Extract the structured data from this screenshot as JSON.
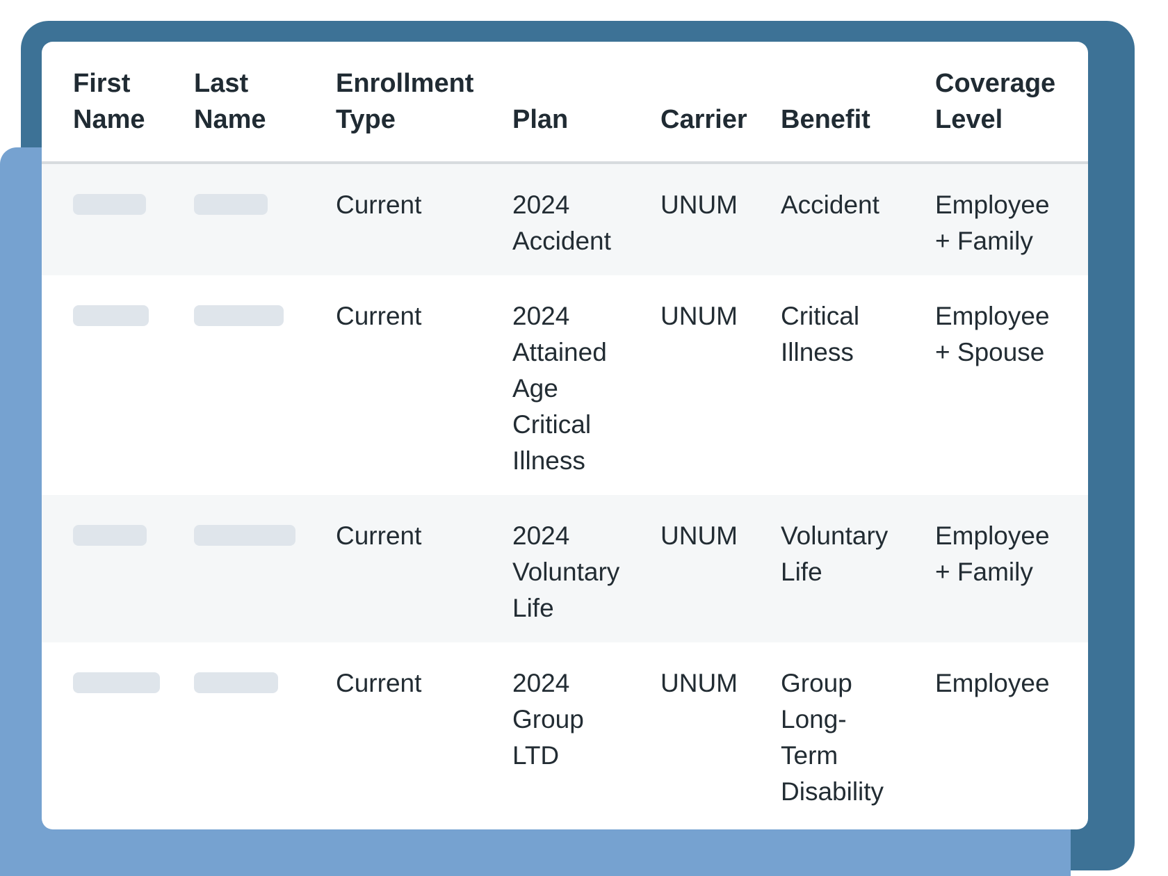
{
  "colors": {
    "frame_outer": "#3d7296",
    "frame_panel": "#76a2d0",
    "card_background": "#ffffff",
    "zebra_row": "#f5f7f8",
    "divider": "#d7dbde",
    "placeholder_pill": "#dfe5eb",
    "header_text": "#202b33",
    "body_text": "#222c33"
  },
  "table": {
    "columns": [
      {
        "id": "first_name",
        "label": "First\nName"
      },
      {
        "id": "last_name",
        "label": "Last\nName"
      },
      {
        "id": "enrollment_type",
        "label": "Enrollment\nType"
      },
      {
        "id": "plan",
        "label": "Plan"
      },
      {
        "id": "carrier",
        "label": "Carrier"
      },
      {
        "id": "benefit",
        "label": "Benefit"
      },
      {
        "id": "coverage_level",
        "label": "Coverage\nLevel"
      }
    ],
    "rows": [
      {
        "first_name_pill_width": 105,
        "last_name_pill_width": 106,
        "enrollment_type": "Current",
        "plan": "2024\nAccident",
        "carrier": "UNUM",
        "benefit": "Accident",
        "coverage_level": "Employee\n+ Family",
        "zebra": true
      },
      {
        "first_name_pill_width": 109,
        "last_name_pill_width": 129,
        "enrollment_type": "Current",
        "plan": "2024\nAttained\nAge\nCritical\nIllness",
        "carrier": "UNUM",
        "benefit": "Critical\nIllness",
        "coverage_level": "Employee\n+ Spouse",
        "zebra": false
      },
      {
        "first_name_pill_width": 106,
        "last_name_pill_width": 146,
        "enrollment_type": "Current",
        "plan": "2024\nVoluntary\nLife",
        "carrier": "UNUM",
        "benefit": "Voluntary\nLife",
        "coverage_level": "Employee\n+ Family",
        "zebra": true
      },
      {
        "first_name_pill_width": 125,
        "last_name_pill_width": 121,
        "enrollment_type": "Current",
        "plan": "2024\nGroup\nLTD",
        "carrier": "UNUM",
        "benefit": "Group\nLong-\nTerm\nDisability",
        "coverage_level": "Employee",
        "zebra": false
      }
    ]
  }
}
